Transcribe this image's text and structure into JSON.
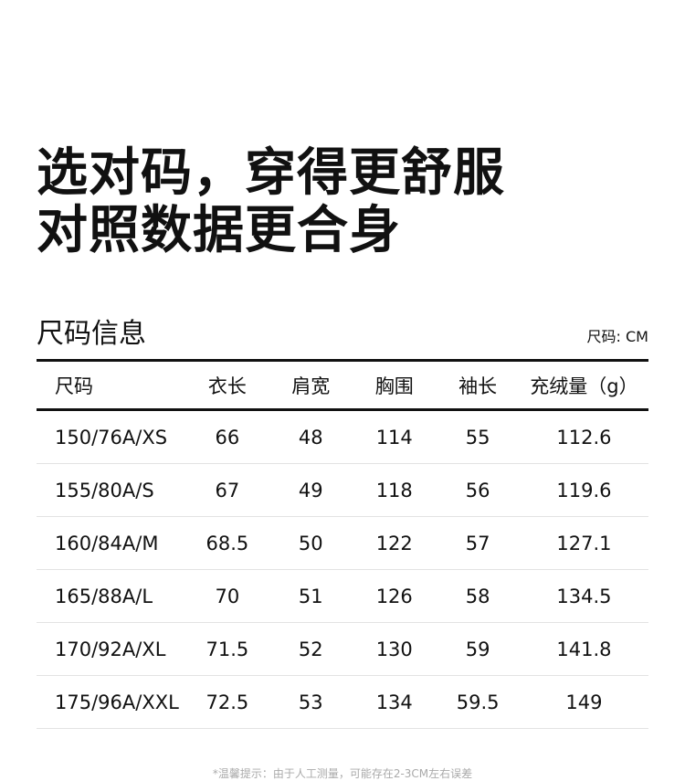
{
  "title_lines": [
    "选对码，穿得更舒服",
    "对照数据更合身"
  ],
  "section_title": "尺码信息",
  "unit": "尺码: CM",
  "columns": [
    "尺码",
    "衣长",
    "肩宽",
    "胸围",
    "袖长",
    "充绒量（g）"
  ],
  "rows": [
    [
      "150/76A/XS",
      "66",
      "48",
      "114",
      "55",
      "112.6"
    ],
    [
      "155/80A/S",
      "67",
      "49",
      "118",
      "56",
      "119.6"
    ],
    [
      "160/84A/M",
      "68.5",
      "50",
      "122",
      "57",
      "127.1"
    ],
    [
      "165/88A/L",
      "70",
      "51",
      "126",
      "58",
      "134.5"
    ],
    [
      "170/92A/XL",
      "71.5",
      "52",
      "130",
      "59",
      "141.8"
    ],
    [
      "175/96A/XXL",
      "72.5",
      "53",
      "134",
      "59.5",
      "149"
    ]
  ],
  "note": "*温馨提示：由于人工测量，可能存在2-3CM左右误差"
}
